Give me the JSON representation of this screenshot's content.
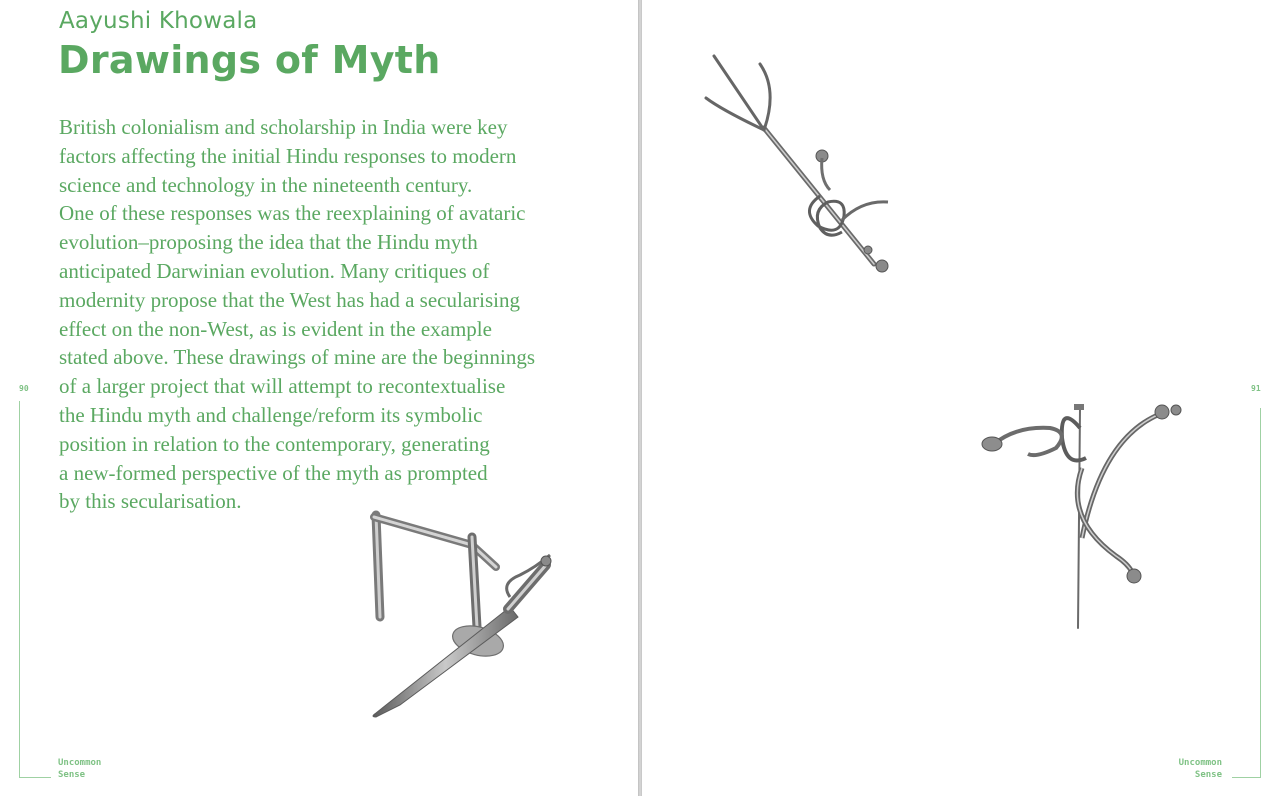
{
  "spread": {
    "left_page": {
      "author": "Aayushi Khowala",
      "title": "Drawings of Myth",
      "body_lines": [
        "British colonialism and scholarship in India were key",
        "factors affecting the initial Hindu responses to modern",
        "science and technology in the nineteenth century.",
        "One of these responses was the reexplaining of avataric",
        "evolution–proposing the idea that the Hindu myth",
        "anticipated Darwinian evolution. Many critiques of",
        "modernity propose that the West has had a secularising",
        "effect on the non-West, as is evident in the example",
        "stated above. These drawings of mine are the beginnings",
        "of a larger project that will attempt to recontextualise",
        "the Hindu myth and challenge/reform its symbolic",
        "position in relation to the contemporary, generating",
        "a new-formed perspective of the myth as prompted",
        "by this secularisation."
      ],
      "page_number": "90",
      "footer": [
        "Uncommon",
        "Sense"
      ]
    },
    "right_page": {
      "page_number": "91",
      "footer": [
        "Uncommon",
        "Sense"
      ]
    }
  },
  "colors": {
    "accent_green": "#5aa861",
    "light_green": "#9fd1a3",
    "pencil_gray": "#6d6d6d",
    "spine_gray": "#c4c4c4"
  },
  "drawings": [
    "pencil drawing of a sword bent into a swastika-like shape",
    "pencil drawing of a trident wrapped around a rod",
    "pencil drawing of bent rods resembling a letter-like glyph"
  ]
}
